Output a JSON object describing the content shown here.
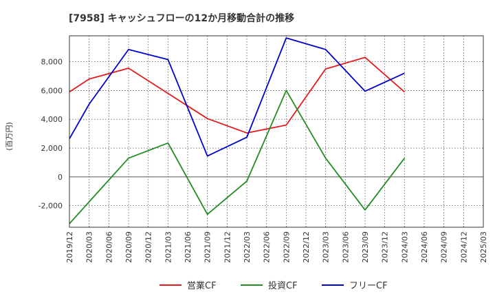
{
  "chart_data": {
    "type": "line",
    "title": "[7958]  キャッシュフローの12か月移動合計の推移",
    "ylabel": "(百万円)",
    "xlabel": "",
    "ylim": [
      -3500,
      9800
    ],
    "yticks": [
      -2000,
      0,
      2000,
      4000,
      6000,
      8000
    ],
    "ytick_labels": [
      "-2,000",
      "0",
      "2,000",
      "4,000",
      "6,000",
      "8,000"
    ],
    "categories": [
      "2019/12",
      "2020/03",
      "2020/06",
      "2020/09",
      "2020/12",
      "2021/03",
      "2021/06",
      "2021/09",
      "2021/12",
      "2022/03",
      "2022/06",
      "2022/09",
      "2022/12",
      "2023/03",
      "2023/06",
      "2023/09",
      "2023/12",
      "2024/03",
      "2024/06",
      "2024/09",
      "2024/12",
      "2025/03"
    ],
    "grid": true,
    "legend_position": "bottom",
    "series": [
      {
        "name": "営業CF",
        "color": "#e41a1c",
        "points": [
          [
            "2019/12",
            5900
          ],
          [
            "2020/03",
            6800
          ],
          [
            "2020/09",
            7550
          ],
          [
            "2021/09",
            4050
          ],
          [
            "2022/03",
            3050
          ],
          [
            "2022/09",
            3600
          ],
          [
            "2023/03",
            7500
          ],
          [
            "2023/09",
            8300
          ],
          [
            "2024/03",
            5900
          ]
        ]
      },
      {
        "name": "投資CF",
        "color": "#228b22",
        "points": [
          [
            "2019/12",
            -3250
          ],
          [
            "2020/09",
            1300
          ],
          [
            "2021/03",
            2350
          ],
          [
            "2021/09",
            -2600
          ],
          [
            "2022/03",
            -300
          ],
          [
            "2022/09",
            6000
          ],
          [
            "2023/03",
            1300
          ],
          [
            "2023/09",
            -2300
          ],
          [
            "2024/03",
            1300
          ]
        ]
      },
      {
        "name": "フリーCF",
        "color": "#0000cd",
        "points": [
          [
            "2019/12",
            2650
          ],
          [
            "2020/03",
            5050
          ],
          [
            "2020/09",
            8850
          ],
          [
            "2021/03",
            8150
          ],
          [
            "2021/09",
            1450
          ],
          [
            "2022/03",
            2750
          ],
          [
            "2022/09",
            9650
          ],
          [
            "2023/03",
            8850
          ],
          [
            "2023/09",
            5950
          ],
          [
            "2024/03",
            7200
          ]
        ]
      }
    ]
  }
}
